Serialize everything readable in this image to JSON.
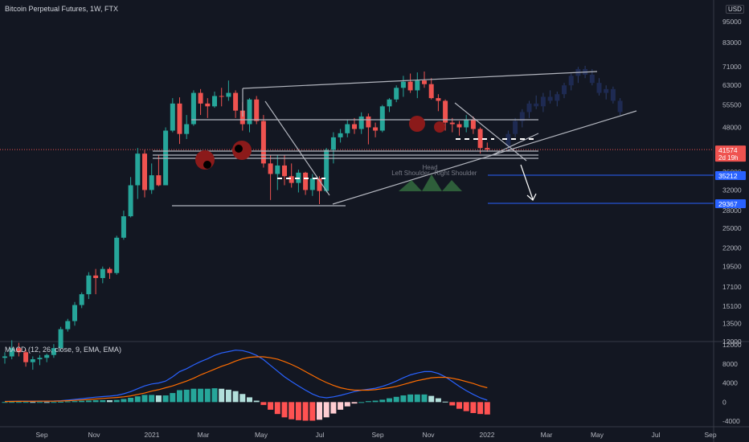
{
  "header": {
    "title": "Bitcoin Perpetual Futures, 1W, FTX",
    "currency": "USD",
    "macd_title": "MACD (12, 26, close, 9, EMA, EMA)"
  },
  "colors": {
    "background": "#131722",
    "up": "#26a69a",
    "down": "#ef5350",
    "macd_line": "#2962ff",
    "signal_line": "#ff6d00",
    "hist_up_strong": "#26a69a",
    "hist_up_weak": "#b2dfdb",
    "hist_down_strong": "#ff5252",
    "hist_down_weak": "#ffcdd2",
    "trendline": "#b2b5be",
    "target_line": "#2962ff"
  },
  "chart_data": [
    {
      "type": "candlestick",
      "title": "Bitcoin Perpetual Futures, 1W, FTX",
      "scale": "log",
      "x_ticks": [
        "Sep",
        "Nov",
        "2021",
        "Mar",
        "May",
        "Jul",
        "Sep",
        "Nov",
        "2022",
        "Mar",
        "May",
        "Jul",
        "Sep"
      ],
      "y_ticks": [
        12000,
        13500,
        15100,
        17100,
        19500,
        22000,
        25000,
        28000,
        32000,
        36000,
        48000,
        55500,
        63000,
        71000,
        83000,
        95000
      ],
      "y_tick_labels": [
        "12000",
        "13500",
        "15100",
        "17100",
        "19500",
        "22000",
        "25000",
        "28000",
        "32000",
        "36000",
        "48000",
        "55500",
        "63000",
        "71000",
        "83000",
        "95000"
      ],
      "price_labels": [
        {
          "text": "41574",
          "sub": "2d 19h",
          "value": 41574,
          "color": "#ef5350"
        },
        {
          "text": "35212",
          "value": 35212,
          "color": "#2962ff"
        },
        {
          "text": "29367",
          "value": 29367,
          "color": "#2962ff"
        }
      ],
      "annotations": [
        {
          "text": "Head"
        },
        {
          "text": "Left Shoulder"
        },
        {
          "text": "Right Shoulder"
        }
      ],
      "ohlc": [
        [
          10800,
          11200,
          10400,
          10900
        ],
        [
          10900,
          12100,
          10700,
          11500
        ],
        [
          11500,
          11900,
          10900,
          11200
        ],
        [
          11200,
          11400,
          10200,
          10500
        ],
        [
          10500,
          10900,
          10000,
          10700
        ],
        [
          10700,
          11000,
          10300,
          10800
        ],
        [
          10800,
          11100,
          10500,
          11000
        ],
        [
          11000,
          11800,
          10800,
          11500
        ],
        [
          11500,
          13200,
          11300,
          13000
        ],
        [
          13000,
          13900,
          12800,
          13700
        ],
        [
          13700,
          15500,
          13300,
          15200
        ],
        [
          15200,
          16500,
          14900,
          16300
        ],
        [
          16300,
          18800,
          15800,
          18400
        ],
        [
          18400,
          19200,
          16300,
          18100
        ],
        [
          18100,
          19500,
          17500,
          19200
        ],
        [
          19200,
          19400,
          18000,
          18700
        ],
        [
          18700,
          23800,
          18500,
          23500
        ],
        [
          23500,
          28000,
          23200,
          27000
        ],
        [
          27000,
          34800,
          26800,
          33000
        ],
        [
          33000,
          42000,
          30200,
          40500
        ],
        [
          40500,
          41500,
          30500,
          32000
        ],
        [
          32000,
          38000,
          31200,
          35200
        ],
        [
          35200,
          40000,
          32800,
          33000
        ],
        [
          33000,
          48000,
          33000,
          47000
        ],
        [
          47000,
          58000,
          46500,
          56000
        ],
        [
          56000,
          58300,
          43100,
          46000
        ],
        [
          46000,
          52000,
          44500,
          49000
        ],
        [
          49000,
          61000,
          48500,
          60000
        ],
        [
          60000,
          61500,
          52000,
          56000
        ],
        [
          56000,
          58000,
          51000,
          55000
        ],
        [
          55000,
          60500,
          54500,
          58800
        ],
        [
          58800,
          62000,
          55000,
          58500
        ],
        [
          58500,
          65000,
          57000,
          60000
        ],
        [
          60000,
          61000,
          51000,
          53500
        ],
        [
          53500,
          56500,
          47000,
          49000
        ],
        [
          49000,
          58000,
          46500,
          57500
        ],
        [
          57500,
          58800,
          49000,
          50000
        ],
        [
          50000,
          52000,
          37000,
          38000
        ],
        [
          38000,
          40000,
          30000,
          35500
        ],
        [
          35500,
          40000,
          32000,
          37500
        ],
        [
          37500,
          40000,
          33000,
          35000
        ],
        [
          35000,
          38000,
          32500,
          33500
        ],
        [
          33500,
          36500,
          31500,
          35800
        ],
        [
          35800,
          36000,
          31000,
          32000
        ],
        [
          32000,
          35500,
          30800,
          34500
        ],
        [
          34500,
          35000,
          29200,
          31800
        ],
        [
          31800,
          42000,
          31500,
          41500
        ],
        [
          41500,
          46500,
          38000,
          45000
        ],
        [
          45000,
          47500,
          43500,
          46200
        ],
        [
          46200,
          50500,
          45000,
          49000
        ],
        [
          49000,
          51000,
          46000,
          47500
        ],
        [
          47500,
          52900,
          46000,
          51500
        ],
        [
          51500,
          52500,
          43000,
          48000
        ],
        [
          48000,
          49500,
          45000,
          47000
        ],
        [
          47000,
          55500,
          46500,
          55000
        ],
        [
          55000,
          58000,
          53000,
          57500
        ],
        [
          57500,
          63000,
          56500,
          62000
        ],
        [
          62000,
          67000,
          58500,
          64500
        ],
        [
          64500,
          68000,
          60000,
          61000
        ],
        [
          61000,
          68500,
          58000,
          65000
        ],
        [
          65000,
          68900,
          62000,
          63500
        ],
        [
          63500,
          66000,
          57500,
          58000
        ],
        [
          58000,
          59500,
          53300,
          57000
        ],
        [
          57000,
          57500,
          47000,
          49500
        ],
        [
          49500,
          51000,
          46500,
          49000
        ],
        [
          49000,
          50000,
          45500,
          48000
        ],
        [
          48000,
          52000,
          46500,
          50500
        ],
        [
          50500,
          51500,
          46000,
          47500
        ],
        [
          47500,
          48000,
          40500,
          42000
        ],
        [
          42000,
          43500,
          41000,
          41574
        ]
      ],
      "projection": {
        "type": "candlestick",
        "values_style": "ghost",
        "ohlc": [
          [
            42500,
            47000,
            41500,
            46000
          ],
          [
            46000,
            51000,
            45000,
            50000
          ],
          [
            50000,
            54000,
            48000,
            53000
          ],
          [
            53000,
            57000,
            51000,
            56000
          ],
          [
            56000,
            59000,
            54000,
            55000
          ],
          [
            55000,
            60000,
            53000,
            58500
          ],
          [
            58500,
            61000,
            56000,
            57000
          ],
          [
            57000,
            60500,
            55000,
            59500
          ],
          [
            59500,
            64000,
            58000,
            63000
          ],
          [
            63000,
            68000,
            61000,
            67000
          ],
          [
            67000,
            71000,
            64000,
            70000
          ],
          [
            70000,
            71500,
            66000,
            67500
          ],
          [
            67500,
            70000,
            63000,
            64000
          ],
          [
            64000,
            66000,
            59000,
            60000
          ],
          [
            60000,
            63000,
            57500,
            61500
          ],
          [
            61500,
            62500,
            56000,
            57000
          ],
          [
            57000,
            58000,
            52000,
            53000
          ]
        ]
      }
    },
    {
      "type": "bar",
      "title": "MACD (12, 26, close, 9, EMA, EMA)",
      "y_ticks": [
        -4000,
        0,
        4000,
        8000,
        12000
      ],
      "y_tick_labels": [
        "-4000",
        "0",
        "4000",
        "8000",
        "12000"
      ],
      "series": [
        {
          "name": "MACD",
          "values": [
            140,
            170,
            190,
            200,
            200,
            210,
            200,
            220,
            300,
            430,
            560,
            720,
            880,
            1040,
            1160,
            1250,
            1400,
            1750,
            2200,
            2800,
            3400,
            3800,
            4000,
            4400,
            5300,
            6400,
            7000,
            7800,
            8500,
            9100,
            9800,
            10300,
            10600,
            10900,
            10800,
            10400,
            9800,
            8900,
            7700,
            6500,
            5300,
            4300,
            3400,
            2500,
            1700,
            1100,
            900,
            1100,
            1400,
            1800,
            2200,
            2500,
            2700,
            2900,
            3300,
            3800,
            4400,
            5100,
            5700,
            6100,
            6400,
            6400,
            6000,
            5300,
            4300,
            3300,
            2400,
            1600,
            900,
            400
          ],
          "type": "line"
        },
        {
          "name": "Signal",
          "values": [
            120,
            140,
            160,
            170,
            180,
            190,
            190,
            200,
            230,
            290,
            360,
            450,
            550,
            650,
            760,
            860,
            960,
            1100,
            1300,
            1600,
            1900,
            2300,
            2600,
            3000,
            3400,
            3900,
            4400,
            5000,
            5700,
            6300,
            6900,
            7500,
            8000,
            8600,
            9100,
            9400,
            9500,
            9500,
            9300,
            9000,
            8500,
            7900,
            7200,
            6400,
            5600,
            4800,
            4100,
            3500,
            3000,
            2700,
            2500,
            2500,
            2500,
            2600,
            2800,
            3000,
            3300,
            3700,
            4100,
            4500,
            4800,
            5100,
            5200,
            5200,
            5000,
            4700,
            4300,
            3900,
            3400,
            3000
          ],
          "type": "line"
        },
        {
          "name": "Histogram",
          "values": [
            20,
            30,
            30,
            30,
            20,
            20,
            10,
            20,
            70,
            140,
            200,
            270,
            330,
            390,
            400,
            390,
            440,
            650,
            900,
            1200,
            1500,
            1500,
            1400,
            1400,
            1900,
            2500,
            2600,
            2800,
            2800,
            2800,
            2900,
            2800,
            2600,
            2300,
            1700,
            1000,
            300,
            -600,
            -1600,
            -2500,
            -3200,
            -3600,
            -3800,
            -3900,
            -3900,
            -3700,
            -3200,
            -2400,
            -1600,
            -900,
            -300,
            0,
            200,
            300,
            500,
            800,
            1100,
            1400,
            1600,
            1600,
            1600,
            1300,
            800,
            100,
            -700,
            -1400,
            -1900,
            -2300,
            -2500,
            -2600
          ],
          "type": "histogram"
        }
      ]
    }
  ]
}
